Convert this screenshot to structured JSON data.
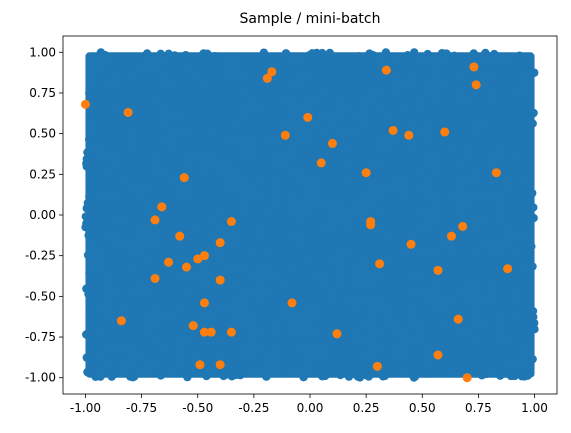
{
  "chart_data": {
    "type": "scatter",
    "title": "Sample / mini-batch",
    "xlabel": "",
    "ylabel": "",
    "xlim": [
      -1.1,
      1.1
    ],
    "ylim": [
      -1.1,
      1.1
    ],
    "xticks": [
      "-1.00",
      "-0.75",
      "-0.50",
      "-0.25",
      "0.00",
      "0.25",
      "0.50",
      "0.75",
      "1.00"
    ],
    "yticks": [
      "-1.00",
      "-0.75",
      "-0.50",
      "-0.25",
      "0.00",
      "0.25",
      "0.50",
      "0.75",
      "1.00"
    ],
    "grid": false,
    "series": [
      {
        "role": "population",
        "color": "#1f77b4",
        "distribution": "uniform",
        "x_range": [
          -1,
          1
        ],
        "y_range": [
          -1,
          1
        ],
        "count": 10000
      },
      {
        "role": "mini-batch",
        "color": "#ff7f0e",
        "points": [
          [
            -1.0,
            0.68
          ],
          [
            -0.81,
            0.63
          ],
          [
            -0.19,
            0.84
          ],
          [
            -0.17,
            0.88
          ],
          [
            0.34,
            0.89
          ],
          [
            0.73,
            0.91
          ],
          [
            0.74,
            0.8
          ],
          [
            -0.11,
            0.49
          ],
          [
            -0.01,
            0.6
          ],
          [
            0.1,
            0.44
          ],
          [
            0.05,
            0.32
          ],
          [
            0.37,
            0.52
          ],
          [
            0.44,
            0.49
          ],
          [
            0.6,
            0.51
          ],
          [
            0.83,
            0.26
          ],
          [
            0.25,
            0.26
          ],
          [
            -0.56,
            0.23
          ],
          [
            -0.66,
            0.05
          ],
          [
            -0.69,
            -0.03
          ],
          [
            -0.35,
            -0.04
          ],
          [
            0.27,
            -0.04
          ],
          [
            0.27,
            -0.06
          ],
          [
            0.68,
            -0.07
          ],
          [
            -0.58,
            -0.13
          ],
          [
            -0.4,
            -0.17
          ],
          [
            0.45,
            -0.18
          ],
          [
            0.63,
            -0.13
          ],
          [
            -0.47,
            -0.25
          ],
          [
            -0.5,
            -0.27
          ],
          [
            -0.63,
            -0.29
          ],
          [
            -0.55,
            -0.32
          ],
          [
            0.31,
            -0.3
          ],
          [
            0.57,
            -0.34
          ],
          [
            0.88,
            -0.33
          ],
          [
            -0.69,
            -0.39
          ],
          [
            -0.4,
            -0.4
          ],
          [
            -0.47,
            -0.54
          ],
          [
            -0.08,
            -0.54
          ],
          [
            -0.84,
            -0.65
          ],
          [
            -0.52,
            -0.68
          ],
          [
            -0.47,
            -0.72
          ],
          [
            -0.44,
            -0.72
          ],
          [
            -0.35,
            -0.72
          ],
          [
            0.12,
            -0.73
          ],
          [
            0.66,
            -0.64
          ],
          [
            0.57,
            -0.86
          ],
          [
            -0.49,
            -0.92
          ],
          [
            -0.4,
            -0.92
          ],
          [
            0.3,
            -0.93
          ],
          [
            0.7,
            -1.0
          ]
        ]
      }
    ]
  }
}
